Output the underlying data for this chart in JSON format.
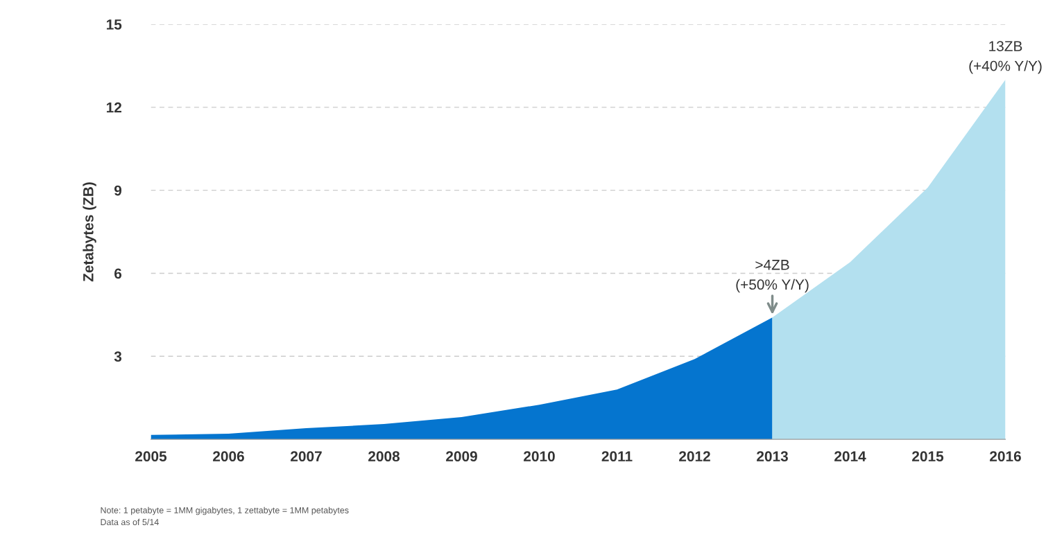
{
  "chart_data": {
    "type": "area",
    "ylabel": "Zetabytes (ZB)",
    "x": [
      2005,
      2006,
      2007,
      2008,
      2009,
      2010,
      2011,
      2012,
      2013,
      2014,
      2015,
      2016
    ],
    "series": [
      {
        "color": "#0575cf",
        "values": [
          0.16,
          0.2,
          0.4,
          0.55,
          0.8,
          1.25,
          1.8,
          2.9,
          4.4,
          null,
          null,
          null
        ]
      },
      {
        "color": "#b3e0ef",
        "values": [
          null,
          null,
          null,
          null,
          null,
          null,
          null,
          null,
          4.4,
          6.4,
          9.1,
          13
        ]
      }
    ],
    "xlim": [
      2005,
      2016
    ],
    "xticks": [
      2005,
      2006,
      2007,
      2008,
      2009,
      2010,
      2011,
      2012,
      2013,
      2014,
      2015,
      2016
    ],
    "ylim": [
      0,
      15
    ],
    "yticks": [
      3,
      6,
      9,
      12,
      15
    ],
    "grid": "y",
    "legend": false,
    "annotations": [
      {
        "text": ">4ZB\n(+50% Y/Y)",
        "x": 2013,
        "y": 4.4
      },
      {
        "text": "13ZB\n(+40% Y/Y)",
        "x": 2016,
        "y": 13
      },
      "Note: 1 petabyte = 1MM gigabytes, 1 zettabyte = 1MM petabytes",
      "Data as of 5/14"
    ]
  }
}
